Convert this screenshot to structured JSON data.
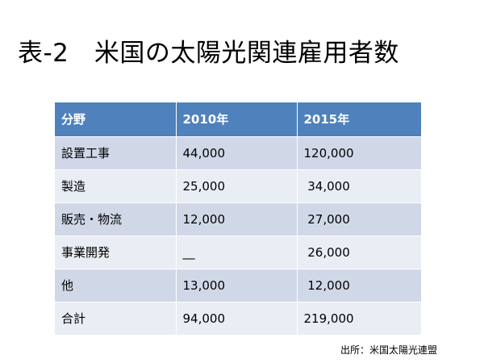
{
  "title": "表-2　米国の太陽光関連雇用者数",
  "table": {
    "headers": [
      "分野",
      "2010年",
      "2015年"
    ],
    "rows": [
      [
        "設置工事",
        "44,000",
        "120,000"
      ],
      [
        "製造",
        "25,000",
        " 34,000"
      ],
      [
        "販売・物流",
        "12,000",
        " 27,000"
      ],
      [
        "事業開発",
        "__",
        " 26,000"
      ],
      [
        "他",
        "13,000",
        " 12,000"
      ],
      [
        "合計",
        "94,000",
        "219,000"
      ]
    ]
  },
  "source": "出所：米国太陽光連盟",
  "colors": {
    "header_bg": "#4f81bd",
    "row_odd_bg": "#d0d8e8",
    "row_even_bg": "#e9edf4"
  }
}
